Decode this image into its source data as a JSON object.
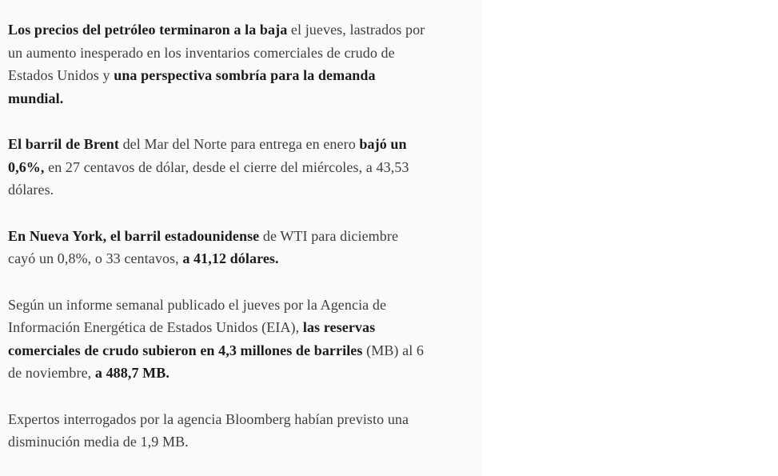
{
  "page": {
    "column_background": "#fafafa",
    "page_background": "#ffffff",
    "text_color": "#3d3d3d",
    "bold_color": "#1b1b1b"
  },
  "article": {
    "paragraphs": [
      {
        "runs": [
          {
            "t": "Los precios del petróleo terminaron a la baja",
            "b": true
          },
          {
            "t": " el jueves, lastrados por\nun aumento inesperado en los inventarios comerciales de crudo de\nEstados Unidos y ",
            "b": false
          },
          {
            "t": "una perspectiva sombría para la demanda\nmundial.",
            "b": true
          }
        ]
      },
      {
        "runs": [
          {
            "t": "El barril de Brent",
            "b": true
          },
          {
            "t": " del Mar del Norte para entrega en enero ",
            "b": false
          },
          {
            "t": "bajó un\n0,6%,",
            "b": true
          },
          {
            "t": " en 27 centavos de dólar, desde el cierre del miércoles, a 43,53\ndólares.",
            "b": false
          }
        ]
      },
      {
        "runs": [
          {
            "t": "En Nueva York, el barril estadounidense",
            "b": true
          },
          {
            "t": " de WTI para diciembre\ncayó un 0,8%, o 33 centavos, ",
            "b": false
          },
          {
            "t": "a 41,12 dólares.",
            "b": true
          }
        ]
      },
      {
        "runs": [
          {
            "t": "Según un informe semanal publicado el jueves por la Agencia de\nInformación Energética de Estados Unidos (EIA), ",
            "b": false
          },
          {
            "t": "las reservas\ncomerciales de crudo subieron en 4,3 millones de barriles",
            "b": true
          },
          {
            "t": " (MB) al 6\nde noviembre, ",
            "b": false
          },
          {
            "t": "a 488,7 MB.",
            "b": true
          }
        ]
      },
      {
        "runs": [
          {
            "t": "Expertos interrogados por la agencia Bloomberg habían previsto una\ndisminución media de 1,9 MB.",
            "b": false
          }
        ]
      }
    ]
  }
}
